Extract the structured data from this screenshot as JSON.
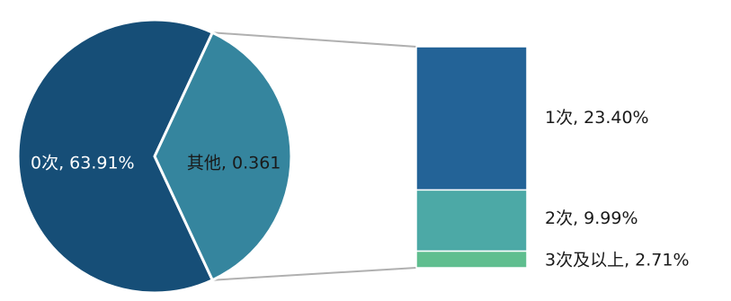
{
  "chart_data": {
    "type": "pie",
    "variant": "bar-of-pie",
    "pie": [
      {
        "label": "0次",
        "value": 63.91,
        "data_label": "0次, 63.91%",
        "color": "#164E77"
      },
      {
        "label": "其他",
        "value": 36.1,
        "data_label": "其他, 0.361",
        "color": "#35859E"
      }
    ],
    "breakdown_of": "其他",
    "bar_stack": [
      {
        "label": "1次",
        "value": 23.4,
        "data_label": "1次, 23.40%",
        "color": "#236397"
      },
      {
        "label": "2次",
        "value": 9.99,
        "data_label": "2次, 9.99%",
        "color": "#4CA9A6"
      },
      {
        "label": "3次及以上",
        "value": 2.71,
        "data_label": "3次及以上, 2.71%",
        "color": "#5FBE8F"
      }
    ],
    "connector_color": "#B0B0B0",
    "label_colors": {
      "dark": "#ffffff",
      "light": "#1a1a1a"
    }
  }
}
